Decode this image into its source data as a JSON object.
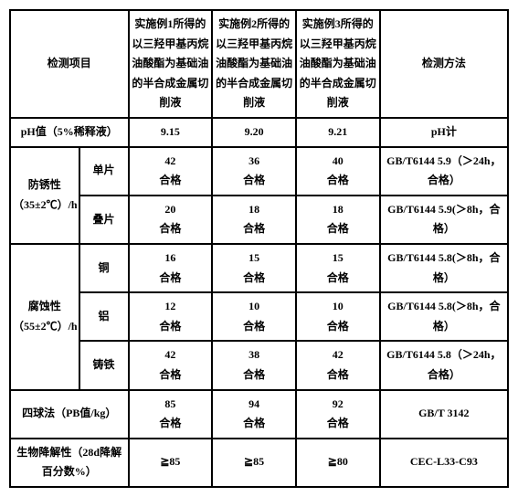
{
  "header": {
    "item": "检测项目",
    "c3": "实施例1所得的以三羟甲基丙烷油酸酯为基础油的半合成金属切削液",
    "c4": "实施例2所得的以三羟甲基丙烷油酸酯为基础油的半合成金属切削液",
    "c5": "实施例3所得的以三羟甲基丙烷油酸酯为基础油的半合成金属切削液",
    "method": "检测方法"
  },
  "ph": {
    "label": "pH值（5%稀释液）",
    "v1": "9.15",
    "v2": "9.20",
    "v3": "9.21",
    "method": "pH计"
  },
  "rust": {
    "label": "防锈性（35±2℃）/h",
    "single": "单片",
    "single_v1": "42",
    "single_v2": "36",
    "single_v3": "40",
    "pass1": "合格",
    "single_method": "GB/T6144 5.9（＞24h，合格）",
    "stack": "叠片",
    "stack_v1": "20",
    "stack_v2": "18",
    "stack_v3": "18",
    "pass2": "合格",
    "stack_method": "GB/T6144 5.9(＞8h，合格）"
  },
  "corr": {
    "label": "腐蚀性（55±2℃）/h",
    "cu": "铜",
    "cu_v1": "16",
    "cu_v2": "15",
    "cu_v3": "15",
    "cu_method": "GB/T6144 5.8(＞8h，合格）",
    "al": "铝",
    "al_v1": "12",
    "al_v2": "10",
    "al_v3": "10",
    "al_method": "GB/T6144 5.8(＞8h，合格）",
    "fe": "铸铁",
    "fe_v1": "42",
    "fe_v2": "38",
    "fe_v3": "42",
    "fe_method": "GB/T6144 5.8（＞24h，合格）",
    "pass": "合格"
  },
  "pb": {
    "label": "四球法（PB值/kg）",
    "v1": "85",
    "v2": "94",
    "v3": "92",
    "pass": "合格",
    "method": "GB/T 3142"
  },
  "bio": {
    "label": "生物降解性（28d降解百分数%）",
    "v1": "≧85",
    "v2": "≧85",
    "v3": "≧80",
    "method": "CEC-L33-C93"
  }
}
